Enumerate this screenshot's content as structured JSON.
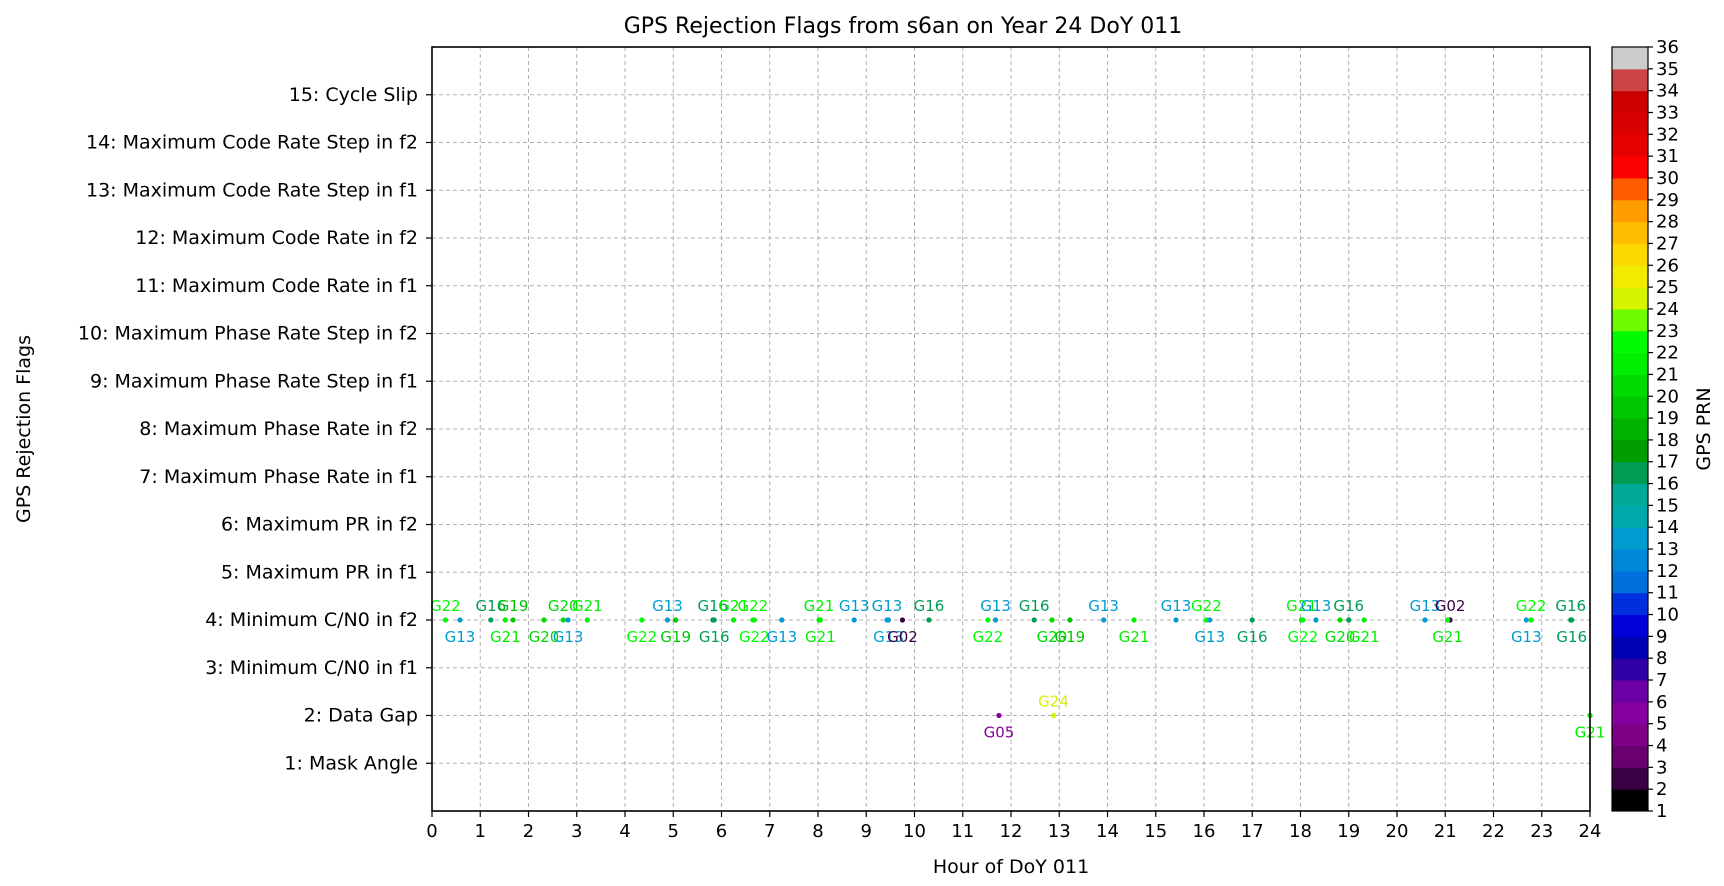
{
  "chart_data": {
    "type": "scatter",
    "title": "GPS Rejection Flags from s6an on Year 24 DoY 011",
    "xlabel": "Hour of DoY 011",
    "ylabel": "GPS Rejection Flags",
    "colorbar_label": "GPS PRN",
    "xlim": [
      0,
      24
    ],
    "ylim": [
      0,
      16
    ],
    "x_ticks": [
      0,
      1,
      2,
      3,
      4,
      5,
      6,
      7,
      8,
      9,
      10,
      11,
      12,
      13,
      14,
      15,
      16,
      17,
      18,
      19,
      20,
      21,
      22,
      23,
      24
    ],
    "y_ticks": [
      {
        "value": 1,
        "label": "1: Mask Angle"
      },
      {
        "value": 2,
        "label": "2: Data Gap"
      },
      {
        "value": 3,
        "label": "3: Minimum C/N0 in f1"
      },
      {
        "value": 4,
        "label": "4: Minimum C/N0 in f2"
      },
      {
        "value": 5,
        "label": "5: Maximum PR in f1"
      },
      {
        "value": 6,
        "label": "6: Maximum PR in f2"
      },
      {
        "value": 7,
        "label": "7: Maximum Phase Rate in f1"
      },
      {
        "value": 8,
        "label": "8: Maximum Phase Rate in f2"
      },
      {
        "value": 9,
        "label": "9: Maximum Phase Rate Step in f1"
      },
      {
        "value": 10,
        "label": "10: Maximum Phase Rate Step in f2"
      },
      {
        "value": 11,
        "label": "11: Maximum Code Rate in f1"
      },
      {
        "value": 12,
        "label": "12: Maximum Code Rate in f2"
      },
      {
        "value": 13,
        "label": "13: Maximum Code Rate Step in f1"
      },
      {
        "value": 14,
        "label": "14: Maximum Code Rate Step in f2"
      },
      {
        "value": 15,
        "label": "15: Cycle Slip"
      }
    ],
    "grid": true,
    "colorbar": {
      "min": 1,
      "max": 36,
      "ticks": [
        1,
        2,
        3,
        4,
        5,
        6,
        7,
        8,
        9,
        10,
        11,
        12,
        13,
        14,
        15,
        16,
        17,
        18,
        19,
        20,
        21,
        22,
        23,
        24,
        25,
        26,
        27,
        28,
        29,
        30,
        31,
        32,
        33,
        34,
        35,
        36
      ],
      "colors": [
        "#000000",
        "#3a0046",
        "#6a006e",
        "#7e0086",
        "#8600a0",
        "#6c00a4",
        "#2f00a8",
        "#0000b4",
        "#0000d8",
        "#0030dd",
        "#0070dd",
        "#0088d8",
        "#009ccf",
        "#00aaaa",
        "#00aa96",
        "#009c56",
        "#009c00",
        "#00b100",
        "#00c800",
        "#00dc00",
        "#00ef00",
        "#00fc00",
        "#70fc00",
        "#d6f400",
        "#f2eb00",
        "#fbd800",
        "#ffbe00",
        "#ff9c00",
        "#ff5c00",
        "#fd0000",
        "#e80000",
        "#d80000",
        "#cc0000",
        "#cc4444",
        "#cccccc"
      ]
    },
    "series": [
      {
        "x": 0.28,
        "y": 4,
        "prn": 22,
        "label": "G22",
        "pos": "above"
      },
      {
        "x": 0.58,
        "y": 4,
        "prn": 13,
        "label": "G13",
        "pos": "below"
      },
      {
        "x": 1.22,
        "y": 4,
        "prn": 16,
        "label": "G16",
        "pos": "above"
      },
      {
        "x": 1.52,
        "y": 4,
        "prn": 21,
        "label": "G21",
        "pos": "below"
      },
      {
        "x": 1.68,
        "y": 4,
        "prn": 19,
        "label": "G19",
        "pos": "above"
      },
      {
        "x": 2.32,
        "y": 4,
        "prn": 20,
        "label": "G20",
        "pos": "below"
      },
      {
        "x": 2.72,
        "y": 4,
        "prn": 20,
        "label": "G20",
        "pos": "above"
      },
      {
        "x": 2.82,
        "y": 4,
        "prn": 13,
        "label": "G13",
        "pos": "below"
      },
      {
        "x": 3.22,
        "y": 4,
        "prn": 21,
        "label": "G21",
        "pos": "above"
      },
      {
        "x": 4.35,
        "y": 4,
        "prn": 22,
        "label": "G22",
        "pos": "below"
      },
      {
        "x": 4.88,
        "y": 4,
        "prn": 13,
        "label": "G13",
        "pos": "above"
      },
      {
        "x": 5.05,
        "y": 4,
        "prn": 19,
        "label": "G19",
        "pos": "below"
      },
      {
        "x": 5.82,
        "y": 4,
        "prn": 16,
        "label": "G16",
        "pos": "above"
      },
      {
        "x": 5.85,
        "y": 4,
        "prn": 16,
        "label": "G16",
        "pos": "below"
      },
      {
        "x": 6.25,
        "y": 4,
        "prn": 21,
        "label": "G21",
        "pos": "above"
      },
      {
        "x": 6.65,
        "y": 4,
        "prn": 22,
        "label": "G22",
        "pos": "above"
      },
      {
        "x": 6.68,
        "y": 4,
        "prn": 22,
        "label": "G22",
        "pos": "below"
      },
      {
        "x": 7.25,
        "y": 4,
        "prn": 13,
        "label": "G13",
        "pos": "below"
      },
      {
        "x": 8.02,
        "y": 4,
        "prn": 21,
        "label": "G21",
        "pos": "above"
      },
      {
        "x": 8.05,
        "y": 4,
        "prn": 21,
        "label": "G21",
        "pos": "below"
      },
      {
        "x": 8.75,
        "y": 4,
        "prn": 13,
        "label": "G13",
        "pos": "above"
      },
      {
        "x": 9.43,
        "y": 4,
        "prn": 13,
        "label": "G13",
        "pos": "above"
      },
      {
        "x": 9.46,
        "y": 4,
        "prn": 13,
        "label": "G13",
        "pos": "below"
      },
      {
        "x": 9.75,
        "y": 4,
        "prn": 2,
        "label": "G02",
        "pos": "below"
      },
      {
        "x": 10.3,
        "y": 4,
        "prn": 16,
        "label": "G16",
        "pos": "above"
      },
      {
        "x": 11.52,
        "y": 4,
        "prn": 22,
        "label": "G22",
        "pos": "below"
      },
      {
        "x": 11.68,
        "y": 4,
        "prn": 13,
        "label": "G13",
        "pos": "above"
      },
      {
        "x": 12.48,
        "y": 4,
        "prn": 16,
        "label": "G16",
        "pos": "above"
      },
      {
        "x": 12.85,
        "y": 4,
        "prn": 20,
        "label": "G20",
        "pos": "below"
      },
      {
        "x": 13.22,
        "y": 4,
        "prn": 19,
        "label": "G19",
        "pos": "below"
      },
      {
        "x": 13.92,
        "y": 4,
        "prn": 13,
        "label": "G13",
        "pos": "above"
      },
      {
        "x": 14.55,
        "y": 4,
        "prn": 21,
        "label": "G21",
        "pos": "below"
      },
      {
        "x": 15.42,
        "y": 4,
        "prn": 13,
        "label": "G13",
        "pos": "above"
      },
      {
        "x": 16.05,
        "y": 4,
        "prn": 22,
        "label": "G22",
        "pos": "above"
      },
      {
        "x": 16.12,
        "y": 4,
        "prn": 13,
        "label": "G13",
        "pos": "below"
      },
      {
        "x": 17.0,
        "y": 4,
        "prn": 16,
        "label": "G16",
        "pos": "below"
      },
      {
        "x": 18.02,
        "y": 4,
        "prn": 21,
        "label": "G21",
        "pos": "above"
      },
      {
        "x": 18.05,
        "y": 4,
        "prn": 22,
        "label": "G22",
        "pos": "below"
      },
      {
        "x": 18.32,
        "y": 4,
        "prn": 13,
        "label": "G13",
        "pos": "above"
      },
      {
        "x": 18.82,
        "y": 4,
        "prn": 20,
        "label": "G20",
        "pos": "below"
      },
      {
        "x": 19.0,
        "y": 4,
        "prn": 16,
        "label": "G16",
        "pos": "above"
      },
      {
        "x": 19.32,
        "y": 4,
        "prn": 21,
        "label": "G21",
        "pos": "below"
      },
      {
        "x": 20.58,
        "y": 4,
        "prn": 13,
        "label": "G13",
        "pos": "above"
      },
      {
        "x": 21.1,
        "y": 4,
        "prn": 2,
        "label": "G02",
        "pos": "above"
      },
      {
        "x": 21.05,
        "y": 4,
        "prn": 21,
        "label": "G21",
        "pos": "below"
      },
      {
        "x": 22.68,
        "y": 4,
        "prn": 13,
        "label": "G13",
        "pos": "below"
      },
      {
        "x": 22.78,
        "y": 4,
        "prn": 22,
        "label": "G22",
        "pos": "above"
      },
      {
        "x": 23.6,
        "y": 4,
        "prn": 16,
        "label": "G16",
        "pos": "above"
      },
      {
        "x": 23.62,
        "y": 4,
        "prn": 16,
        "label": "G16",
        "pos": "below"
      },
      {
        "x": 11.75,
        "y": 2,
        "prn": 5,
        "label": "G05",
        "pos": "below"
      },
      {
        "x": 12.88,
        "y": 2,
        "prn": 24,
        "label": "G24",
        "pos": "above"
      },
      {
        "x": 24.0,
        "y": 2,
        "prn": 21,
        "label": "G21",
        "pos": "below"
      }
    ]
  }
}
